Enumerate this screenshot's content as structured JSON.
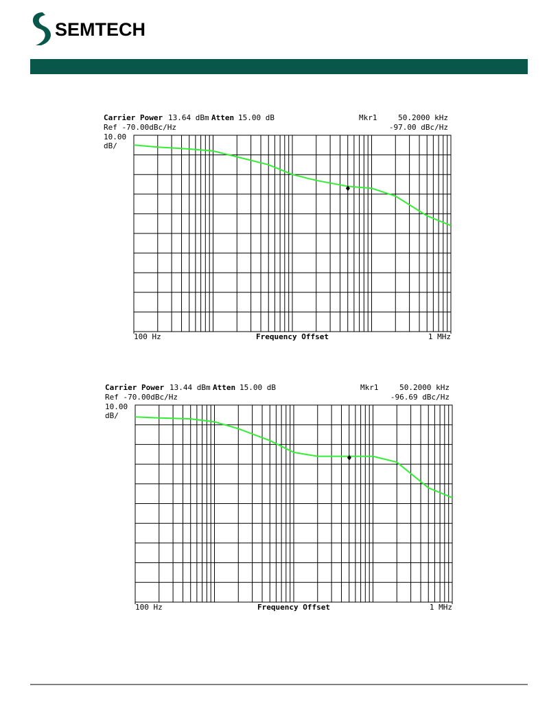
{
  "header": {
    "logo": "SEMTECH"
  },
  "chart_data": [
    {
      "type": "line",
      "carrier_power_label": "Carrier Power",
      "carrier_power": "13.64 dBm",
      "atten_label": "Atten",
      "atten": "15.00 dB",
      "ref": "Ref -70.00dBc/Hz",
      "scale": "10.00",
      "scale_unit": "dB/",
      "x_label": "Frequency Offset",
      "log_x": true,
      "xlim": [
        100,
        1000000
      ],
      "ylim": [
        -170,
        -70
      ],
      "xticks": [
        {
          "value": 100,
          "label": "100 Hz"
        },
        {
          "value": 1000000,
          "label": "1 MHz"
        }
      ],
      "x_grid": [
        200,
        300,
        400,
        500,
        600,
        700,
        800,
        900,
        1000,
        2000,
        3000,
        4000,
        5000,
        6000,
        7000,
        8000,
        9000,
        10000,
        20000,
        30000,
        40000,
        50000,
        60000,
        70000,
        80000,
        90000,
        100000,
        200000,
        300000,
        400000,
        500000,
        600000,
        700000,
        800000,
        900000
      ],
      "y_grid": [
        -80,
        -90,
        -100,
        -110,
        -120,
        -130,
        -140,
        -150,
        -160
      ],
      "marker": {
        "name": "Mkr1",
        "x": 50200,
        "y": -97,
        "x_label": "50.2000 kHz",
        "y_label": "-97.00 dBc/Hz"
      },
      "x": [
        100,
        200,
        500,
        1000,
        2000,
        5000,
        10000,
        20000,
        50000,
        100000,
        200000,
        500000,
        1000000
      ],
      "color": "#33ee33",
      "values": [
        -75,
        -76,
        -77,
        -78,
        -81,
        -85,
        -90,
        -93,
        -96,
        -97,
        -101,
        -111,
        -116
      ]
    },
    {
      "type": "line",
      "carrier_power_label": "Carrier Power",
      "carrier_power": "13.44 dBm",
      "atten_label": "Atten",
      "atten": "15.00 dB",
      "ref": "Ref -70.00dBc/Hz",
      "scale": "10.00",
      "scale_unit": "dB/",
      "x_label": "Frequency Offset",
      "log_x": true,
      "xlim": [
        100,
        1000000
      ],
      "ylim": [
        -170,
        -70
      ],
      "xticks": [
        {
          "value": 100,
          "label": "100 Hz"
        },
        {
          "value": 1000000,
          "label": "1 MHz"
        }
      ],
      "x_grid": [
        200,
        300,
        400,
        500,
        600,
        700,
        800,
        900,
        1000,
        2000,
        3000,
        4000,
        5000,
        6000,
        7000,
        8000,
        9000,
        10000,
        20000,
        30000,
        40000,
        50000,
        60000,
        70000,
        80000,
        90000,
        100000,
        200000,
        300000,
        400000,
        500000,
        600000,
        700000,
        800000,
        900000
      ],
      "y_grid": [
        -80,
        -90,
        -100,
        -110,
        -120,
        -130,
        -140,
        -150,
        -160
      ],
      "marker": {
        "name": "Mkr1",
        "x": 50200,
        "y": -96.69,
        "x_label": "50.2000 kHz",
        "y_label": "-96.69 dBc/Hz"
      },
      "x": [
        100,
        200,
        500,
        1000,
        2000,
        5000,
        10000,
        20000,
        50000,
        100000,
        200000,
        500000,
        1000000
      ],
      "color": "#33ee33",
      "values": [
        -76,
        -76.5,
        -77,
        -78.5,
        -82,
        -88,
        -94,
        -96,
        -96,
        -96,
        -99,
        -112,
        -117
      ]
    }
  ]
}
